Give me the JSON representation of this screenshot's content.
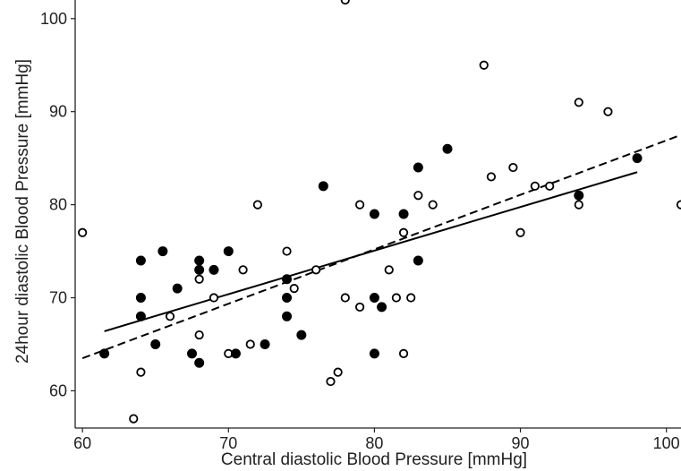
{
  "chart_data": {
    "type": "scatter",
    "title": "",
    "xlabel": "Central diastolic Blood Pressure [mmHg]",
    "ylabel": "24hour diastolic Blood Pressure [mmHg]",
    "xlim": [
      59.5,
      101
    ],
    "ylim": [
      56,
      102
    ],
    "xticks": [
      60,
      70,
      80,
      90,
      100
    ],
    "yticks": [
      60,
      70,
      80,
      90,
      100
    ],
    "grid": false,
    "legend": "none",
    "series": [
      {
        "marker": "filled-circle",
        "color": "#000000",
        "points": [
          [
            61.5,
            64
          ],
          [
            64,
            74
          ],
          [
            64,
            70
          ],
          [
            64,
            68
          ],
          [
            65,
            65
          ],
          [
            65.5,
            75
          ],
          [
            66.5,
            71
          ],
          [
            67.5,
            64
          ],
          [
            68,
            74
          ],
          [
            68,
            73
          ],
          [
            68,
            63
          ],
          [
            69,
            73
          ],
          [
            70,
            75
          ],
          [
            70.5,
            64
          ],
          [
            72.5,
            65
          ],
          [
            74,
            72
          ],
          [
            74,
            70
          ],
          [
            74,
            68
          ],
          [
            75,
            66
          ],
          [
            76.5,
            82
          ],
          [
            80,
            79
          ],
          [
            80,
            70
          ],
          [
            80,
            64
          ],
          [
            80.5,
            69
          ],
          [
            82,
            79
          ],
          [
            83,
            84
          ],
          [
            83,
            74
          ],
          [
            85,
            86
          ],
          [
            94,
            81
          ],
          [
            98,
            85
          ]
        ]
      },
      {
        "marker": "open-circle",
        "color": "#000000",
        "points": [
          [
            60,
            77
          ],
          [
            63.5,
            57
          ],
          [
            64,
            62
          ],
          [
            66,
            68
          ],
          [
            68,
            72
          ],
          [
            68,
            66
          ],
          [
            69,
            70
          ],
          [
            70,
            64
          ],
          [
            71,
            73
          ],
          [
            71.5,
            65
          ],
          [
            72,
            80
          ],
          [
            74,
            75
          ],
          [
            74.5,
            71
          ],
          [
            76,
            73
          ],
          [
            77,
            61
          ],
          [
            77.5,
            62
          ],
          [
            78,
            102
          ],
          [
            78,
            70
          ],
          [
            79,
            80
          ],
          [
            79,
            69
          ],
          [
            81,
            73
          ],
          [
            81.5,
            70
          ],
          [
            82,
            77
          ],
          [
            82,
            64
          ],
          [
            82.5,
            70
          ],
          [
            83,
            81
          ],
          [
            84,
            80
          ],
          [
            87.5,
            95
          ],
          [
            88,
            83
          ],
          [
            89.5,
            84
          ],
          [
            90,
            77
          ],
          [
            91,
            82
          ],
          [
            92,
            82
          ],
          [
            94,
            91
          ],
          [
            94,
            80
          ],
          [
            96,
            90
          ],
          [
            101,
            80
          ]
        ]
      }
    ],
    "fit_lines": [
      {
        "style": "solid",
        "from": [
          61.5,
          66.4
        ],
        "to": [
          98,
          83.5
        ]
      },
      {
        "style": "dashed",
        "from": [
          60,
          63.5
        ],
        "to": [
          101,
          87.5
        ]
      }
    ]
  },
  "colors": {
    "marker": "#000000",
    "axis": "#222222",
    "background": "#ffffff"
  }
}
